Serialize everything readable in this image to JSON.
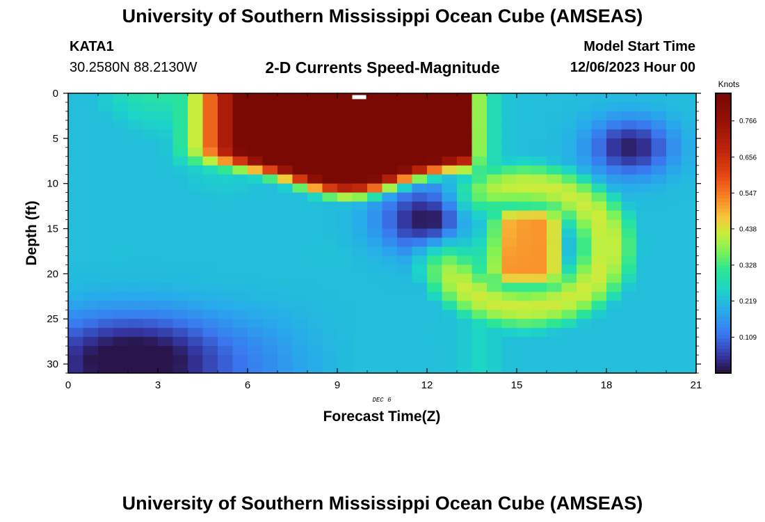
{
  "header": {
    "title": "University of Southern Mississippi Ocean Cube (AMSEAS)",
    "station": "KATA1",
    "coords": "30.2580N  88.2130W",
    "subtitle": "2-D Currents Speed-Magnitude",
    "start_label": "Model Start Time",
    "start_date": "12/06/2023 Hour 00"
  },
  "footer": {
    "title": "University of Southern Mississippi Ocean Cube (AMSEAS)"
  },
  "chart_data": {
    "type": "heatmap",
    "title": "2-D Currents Speed-Magnitude",
    "xlabel": "Forecast Time(Z)",
    "ylabel": "Depth (ft)",
    "date_label": "DEC 6",
    "xlim": [
      0,
      21
    ],
    "ylim": [
      0,
      31
    ],
    "y_inverted": true,
    "x_ticks": [
      "0",
      "3",
      "6",
      "9",
      "12",
      "15",
      "18",
      "21"
    ],
    "y_ticks": [
      "0",
      "5",
      "10",
      "15",
      "20",
      "25",
      "30"
    ],
    "colorbar": {
      "label": "Knots",
      "min": 0.0,
      "max": 0.85,
      "ticks": [
        "0.109",
        "0.219",
        "0.328",
        "0.438",
        "0.547",
        "0.656",
        "0.766"
      ],
      "tick_values": [
        0.109,
        0.219,
        0.328,
        0.438,
        0.547,
        0.656,
        0.766
      ]
    },
    "grid": {
      "nx": 42,
      "ny": 31,
      "x_step_hours": 0.5,
      "y_step_ft": 1.0
    },
    "features": [
      {
        "kind": "surface_jet",
        "t_center": 9.5,
        "t_sigma": 2.6,
        "t_ramp_start": 0.5,
        "t_cutoff": 13.6,
        "base_speed": 0.7,
        "depth_base": 7.5,
        "depth_peak": 11.0,
        "depth_min": 1.0,
        "depth_width": 3.5,
        "shoulder_t": 13.8
      },
      {
        "kind": "eddy_low",
        "t": 12.0,
        "depth": 14.0,
        "t_radius": 1.6,
        "depth_radius": 3.6,
        "min_speed": 0.01
      },
      {
        "kind": "jet_high",
        "t": 15.3,
        "depth": 17.0,
        "t_radius": 1.5,
        "depth_radius": 5.0,
        "peak_speed": 0.52
      },
      {
        "kind": "ring",
        "t": 15.3,
        "depth": 17.0,
        "t_radius": 3.4,
        "depth_radius": 8.5,
        "ring_speed": 0.31
      },
      {
        "kind": "eddy_low",
        "t": 18.8,
        "depth": 6.0,
        "t_radius": 1.4,
        "depth_radius": 3.2,
        "min_speed": 0.02
      },
      {
        "kind": "bottom_low",
        "t": 2.2,
        "depth": 29.5,
        "t_radius": 3.0,
        "depth_radius": 5.0,
        "min_speed": 0.03
      },
      {
        "kind": "background",
        "base_speed": 0.19
      }
    ],
    "missing_cells": [
      {
        "t": 9.5,
        "depth": 0.2
      }
    ]
  }
}
